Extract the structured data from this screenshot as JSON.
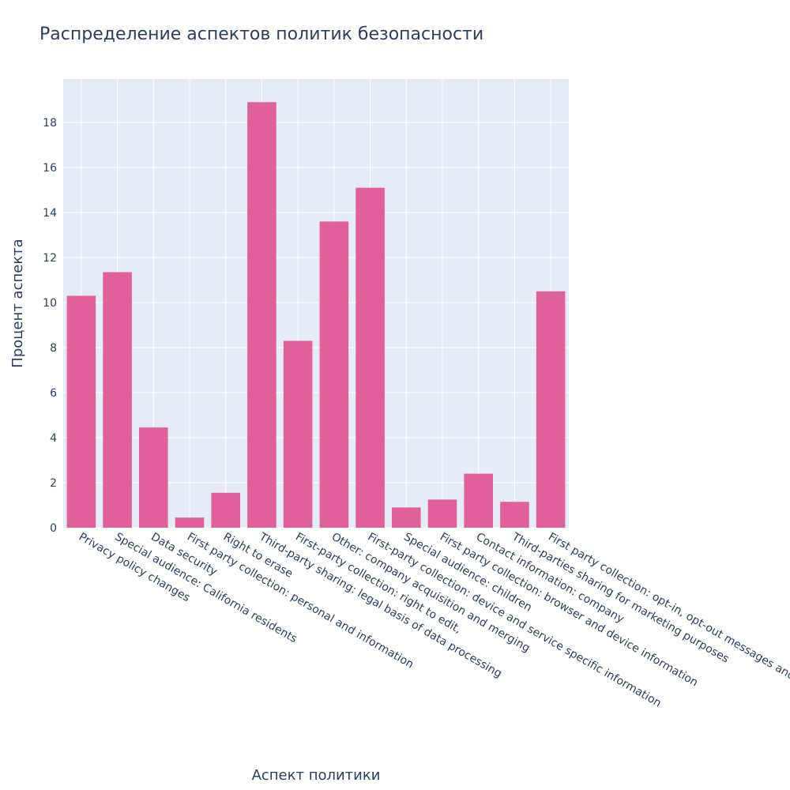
{
  "chart_data": {
    "type": "bar",
    "title": "Распределение аспектов политик безопасности",
    "x_label": "Аспект политики",
    "y_label": "Процент аспекта",
    "categories": [
      "Privacy policy changes",
      "Special audience: California residents",
      "Data security",
      "First party collection: personal and information",
      "Right to erase",
      "Third-party sharing: legal basis of data processing",
      "First-party collection: right to edit,",
      "Other: company acquisition and merging",
      "First-party collection: device and service specific information",
      "Special audience: children",
      "First party collection: browser and device information",
      "Contact information: company",
      "Third-parties sharing for marketing purposes",
      "First party collection: opt-in, opt-out messages and notifications to users"
    ],
    "values": [
      10.3,
      11.35,
      4.45,
      0.45,
      1.55,
      18.9,
      8.3,
      13.6,
      15.1,
      0.9,
      1.25,
      2.4,
      1.15,
      10.5
    ],
    "color": "#e0609a",
    "ylim": [
      0,
      19.93
    ],
    "yticks": [
      0,
      2,
      4,
      6,
      8,
      10,
      12,
      14,
      16,
      18
    ],
    "grid": true
  }
}
